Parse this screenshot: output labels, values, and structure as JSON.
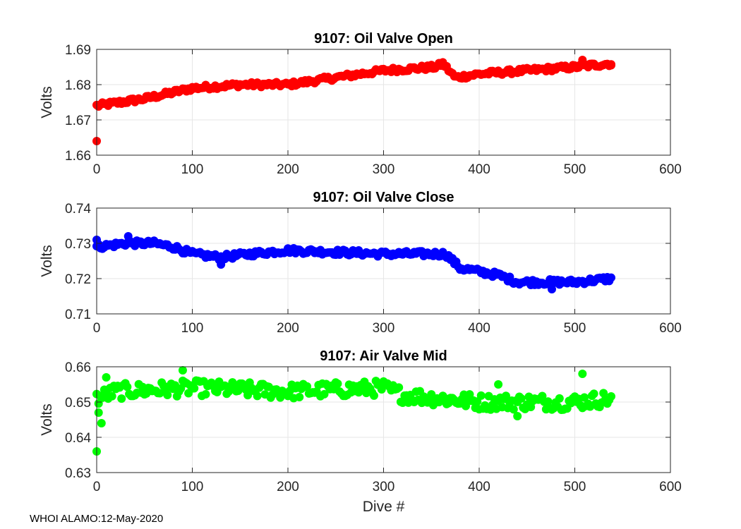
{
  "footer": "WHOI ALAMO:12-May-2020",
  "xlabel": "Dive #",
  "chart_data": [
    {
      "type": "scatter",
      "title": "9107: Oil Valve Open",
      "xlabel": "",
      "ylabel": "Volts",
      "xlim": [
        0,
        600
      ],
      "ylim": [
        1.66,
        1.69
      ],
      "xticks": [
        0,
        100,
        200,
        300,
        400,
        500,
        600
      ],
      "yticks": [
        1.66,
        1.67,
        1.68,
        1.69
      ],
      "ytick_labels": [
        "1.66",
        "1.67",
        "1.68",
        "1.69"
      ],
      "grid": true,
      "color": "#ff0000",
      "trend": [
        [
          0,
          1.674
        ],
        [
          50,
          1.676
        ],
        [
          100,
          1.679
        ],
        [
          150,
          1.68
        ],
        [
          200,
          1.68
        ],
        [
          300,
          1.684
        ],
        [
          355,
          1.685
        ],
        [
          362,
          1.686
        ],
        [
          375,
          1.682
        ],
        [
          400,
          1.683
        ],
        [
          450,
          1.684
        ],
        [
          500,
          1.685
        ],
        [
          538,
          1.686
        ]
      ],
      "noise": 0.0007,
      "outliers": [
        [
          0,
          1.664
        ],
        [
          508,
          1.687
        ],
        [
          538,
          1.6855
        ]
      ]
    },
    {
      "type": "scatter",
      "title": "9107: Oil Valve Close",
      "xlabel": "",
      "ylabel": "Volts",
      "xlim": [
        0,
        600
      ],
      "ylim": [
        0.71,
        0.74
      ],
      "xticks": [
        0,
        100,
        200,
        300,
        400,
        500,
        600
      ],
      "yticks": [
        0.71,
        0.72,
        0.73,
        0.74
      ],
      "ytick_labels": [
        "0.71",
        "0.72",
        "0.73",
        "0.74"
      ],
      "grid": true,
      "color": "#0000ff",
      "trend": [
        [
          0,
          0.729
        ],
        [
          30,
          0.73
        ],
        [
          60,
          0.73
        ],
        [
          80,
          0.729
        ],
        [
          100,
          0.727
        ],
        [
          130,
          0.726
        ],
        [
          160,
          0.727
        ],
        [
          200,
          0.728
        ],
        [
          300,
          0.727
        ],
        [
          365,
          0.727
        ],
        [
          380,
          0.723
        ],
        [
          420,
          0.721
        ],
        [
          440,
          0.719
        ],
        [
          500,
          0.719
        ],
        [
          538,
          0.72
        ]
      ],
      "noise": 0.0008,
      "outliers": [
        [
          0,
          0.731
        ],
        [
          33,
          0.732
        ],
        [
          130,
          0.724
        ],
        [
          476,
          0.717
        ]
      ]
    },
    {
      "type": "scatter",
      "title": "9107: Air Valve Mid",
      "xlabel": "Dive #",
      "ylabel": "Volts",
      "xlim": [
        0,
        600
      ],
      "ylim": [
        0.63,
        0.66
      ],
      "xticks": [
        0,
        100,
        200,
        300,
        400,
        500,
        600
      ],
      "yticks": [
        0.63,
        0.64,
        0.65,
        0.66
      ],
      "ytick_labels": [
        "0.63",
        "0.64",
        "0.65",
        "0.66"
      ],
      "grid": true,
      "color": "#00ff00",
      "trend": [
        [
          0,
          0.651
        ],
        [
          20,
          0.653
        ],
        [
          100,
          0.654
        ],
        [
          200,
          0.653
        ],
        [
          300,
          0.654
        ],
        [
          320,
          0.652
        ],
        [
          400,
          0.65
        ],
        [
          450,
          0.65
        ],
        [
          500,
          0.65
        ],
        [
          538,
          0.651
        ]
      ],
      "noise": 0.0022,
      "outliers": [
        [
          0,
          0.636
        ],
        [
          2,
          0.647
        ],
        [
          5,
          0.644
        ],
        [
          10,
          0.657
        ],
        [
          90,
          0.659
        ],
        [
          420,
          0.655
        ],
        [
          508,
          0.658
        ],
        [
          440,
          0.646
        ]
      ]
    }
  ]
}
